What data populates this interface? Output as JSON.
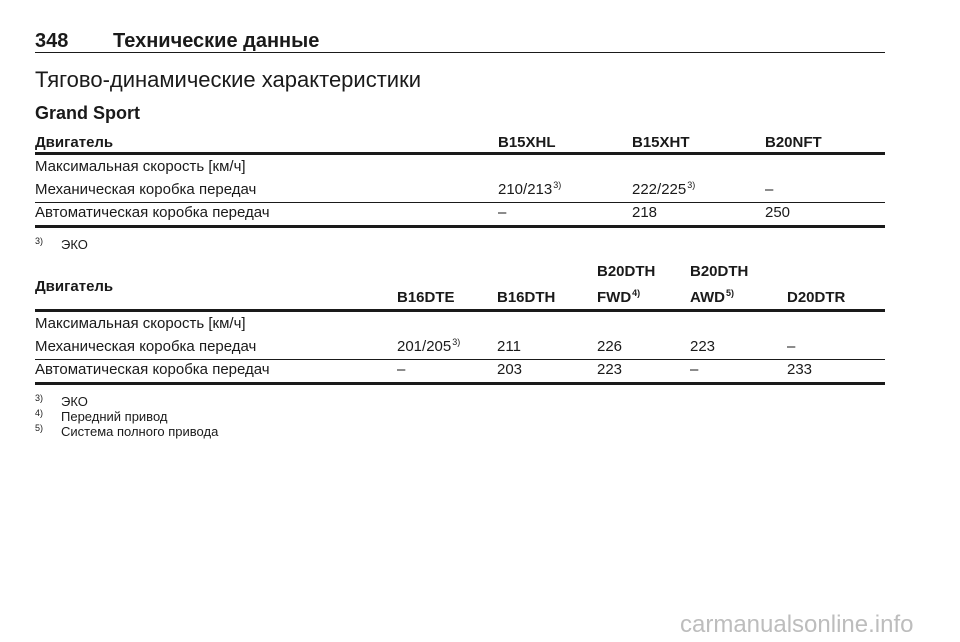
{
  "header": {
    "page_number": "348",
    "section": "Технические данные"
  },
  "title": "Тягово-динамические характеристики",
  "subtitle": "Grand Sport",
  "tables": [
    {
      "columns": [
        {
          "text": "Двигатель"
        },
        {
          "text": "B15XHL"
        },
        {
          "text": "B15XHT"
        },
        {
          "text": "B20NFT"
        }
      ],
      "rows": [
        [
          {
            "text": "Максимальная скорость [км/ч]"
          }
        ],
        [
          {
            "text": "Механическая коробка передач"
          },
          {
            "text": "210/213",
            "sup": "3)"
          },
          {
            "text": "222/225",
            "sup": "3)"
          },
          {
            "text": "–"
          }
        ],
        [
          {
            "text": "Автоматическая коробка передач"
          },
          {
            "text": "–"
          },
          {
            "text": "218"
          },
          {
            "text": "250"
          }
        ]
      ],
      "footnotes": [
        {
          "mark": "3)",
          "text": "ЭКО"
        }
      ]
    },
    {
      "columns": [
        {
          "text": "Двигатель"
        },
        {
          "text": "B16DTE"
        },
        {
          "text": "B16DTH"
        },
        {
          "line1": "B20DTH",
          "text": "FWD",
          "sup": "4)"
        },
        {
          "line1": "B20DTH",
          "text": "AWD",
          "sup": "5)"
        },
        {
          "text": "D20DTR"
        }
      ],
      "rows": [
        [
          {
            "text": "Максимальная скорость [км/ч]"
          }
        ],
        [
          {
            "text": "Механическая коробка передач"
          },
          {
            "text": "201/205",
            "sup": "3)"
          },
          {
            "text": "211"
          },
          {
            "text": "226"
          },
          {
            "text": "223"
          },
          {
            "text": "–"
          }
        ],
        [
          {
            "text": "Автоматическая коробка передач"
          },
          {
            "text": "–"
          },
          {
            "text": "203"
          },
          {
            "text": "223"
          },
          {
            "text": "–"
          },
          {
            "text": "233"
          }
        ]
      ],
      "footnotes": [
        {
          "mark": "3)",
          "text": "ЭКО"
        },
        {
          "mark": "4)",
          "text": "Передний привод"
        },
        {
          "mark": "5)",
          "text": "Система полного привода"
        }
      ]
    }
  ],
  "watermark": "carmanualsonline.info"
}
